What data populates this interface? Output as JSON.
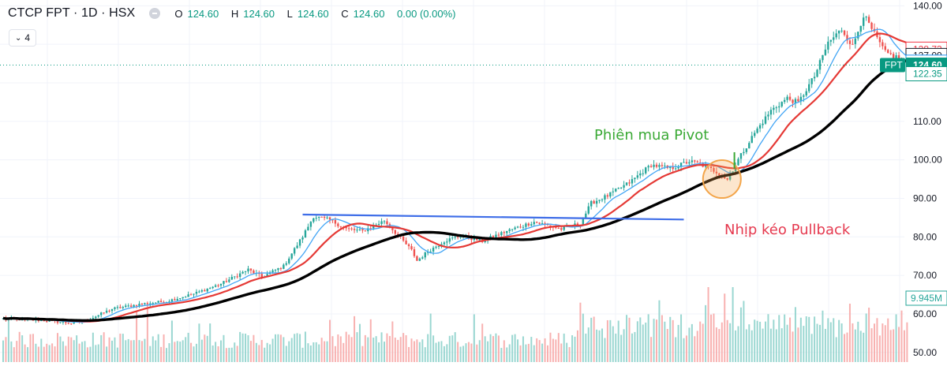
{
  "header": {
    "title": "CTCP FPT · 1D · HSX",
    "ohlc": [
      {
        "label": "O",
        "value": "124.60"
      },
      {
        "label": "H",
        "value": "124.60"
      },
      {
        "label": "L",
        "value": "124.60"
      },
      {
        "label": "C",
        "value": "124.60"
      },
      {
        "label": "",
        "value": "0.00 (0.00%)"
      }
    ],
    "indicator_count": "4"
  },
  "price_tags": [
    {
      "text": "128.73",
      "price": 128.73,
      "color": "#f23645",
      "filled": false
    },
    {
      "text": "127.09",
      "price": 127.09,
      "color": "#131722",
      "filled": false
    },
    {
      "text": "125.35",
      "price": 125.35,
      "color": "#2196f3",
      "filled": false
    },
    {
      "text": "124.60",
      "price": 124.6,
      "color": "#089981",
      "filled": true
    },
    {
      "text": "122.35",
      "price": 122.35,
      "color": "#089981",
      "filled": false
    }
  ],
  "symbol_tag": "FPT",
  "volume_tag": "9.945M",
  "annotations": {
    "pivot": "Phiên mua Pivot",
    "pullback": "Nhịp kéo Pullback"
  },
  "colors": {
    "up": "#26a69a",
    "down": "#ef5350",
    "ma_fast": "#42a5f5",
    "ma_mid": "#e53935",
    "ma_slow": "#000000",
    "trendline": "#3f6ee8",
    "pivot_text": "#3aa935",
    "pullback_text": "#e5394f",
    "circle": "#f3a54a"
  },
  "chart_data": {
    "type": "candlestick",
    "title": "CTCP FPT · 1D · HSX",
    "y_axis": {
      "side": "right",
      "ticks": [
        140,
        110,
        100,
        90,
        80,
        70,
        60,
        50
      ],
      "tick_labels": [
        "140.00",
        "110.00",
        "100.00",
        "90.00",
        "80.00",
        "70.00",
        "60.00",
        "50.00"
      ],
      "range": [
        47.5,
        141.5
      ]
    },
    "grid": true,
    "last_price": 124.6,
    "anchors": [
      [
        0,
        58.8
      ],
      [
        15,
        58.3
      ],
      [
        25,
        57.6
      ],
      [
        30,
        58.1
      ],
      [
        40,
        61.3
      ],
      [
        50,
        62.5
      ],
      [
        60,
        63.3
      ],
      [
        70,
        65.2
      ],
      [
        80,
        67.8
      ],
      [
        90,
        71.5
      ],
      [
        95,
        69.6
      ],
      [
        103,
        72.4
      ],
      [
        110,
        80.1
      ],
      [
        114,
        85.3
      ],
      [
        120,
        84.4
      ],
      [
        126,
        82.1
      ],
      [
        132,
        81.5
      ],
      [
        140,
        84.2
      ],
      [
        145,
        80.4
      ],
      [
        150,
        76.5
      ],
      [
        152,
        73.8
      ],
      [
        156,
        76.2
      ],
      [
        162,
        78.9
      ],
      [
        168,
        80.3
      ],
      [
        176,
        78.9
      ],
      [
        185,
        81.5
      ],
      [
        195,
        83.9
      ],
      [
        205,
        82.0
      ],
      [
        212,
        83.5
      ],
      [
        216,
        88.8
      ],
      [
        222,
        90.7
      ],
      [
        230,
        94.1
      ],
      [
        238,
        98.7
      ],
      [
        245,
        97.7
      ],
      [
        252,
        99.6
      ],
      [
        256,
        98.9
      ],
      [
        262,
        96.9
      ],
      [
        266,
        94.9
      ],
      [
        270,
        100.1
      ],
      [
        276,
        107.0
      ],
      [
        282,
        112.8
      ],
      [
        288,
        116.0
      ],
      [
        292,
        114.8
      ],
      [
        298,
        121.7
      ],
      [
        303,
        130.4
      ],
      [
        308,
        133.9
      ],
      [
        312,
        129.5
      ],
      [
        316,
        137.6
      ],
      [
        320,
        132.6
      ],
      [
        324,
        127.8
      ],
      [
        328,
        126.7
      ],
      [
        332,
        124.6
      ]
    ],
    "series": [
      {
        "name": "",
        "type": "sma",
        "period": 10,
        "color": "#42a5f5"
      },
      {
        "name": "",
        "type": "sma",
        "period": 20,
        "color": "#e53935"
      },
      {
        "name": "",
        "type": "sma",
        "period": 50,
        "color": "#000000"
      }
    ],
    "trendline": {
      "from": [
        110,
        85.8
      ],
      "to": [
        250,
        84.5
      ]
    },
    "pivot_session_index": 268,
    "pullback_zone": {
      "index": 264,
      "price": 95.0
    }
  }
}
